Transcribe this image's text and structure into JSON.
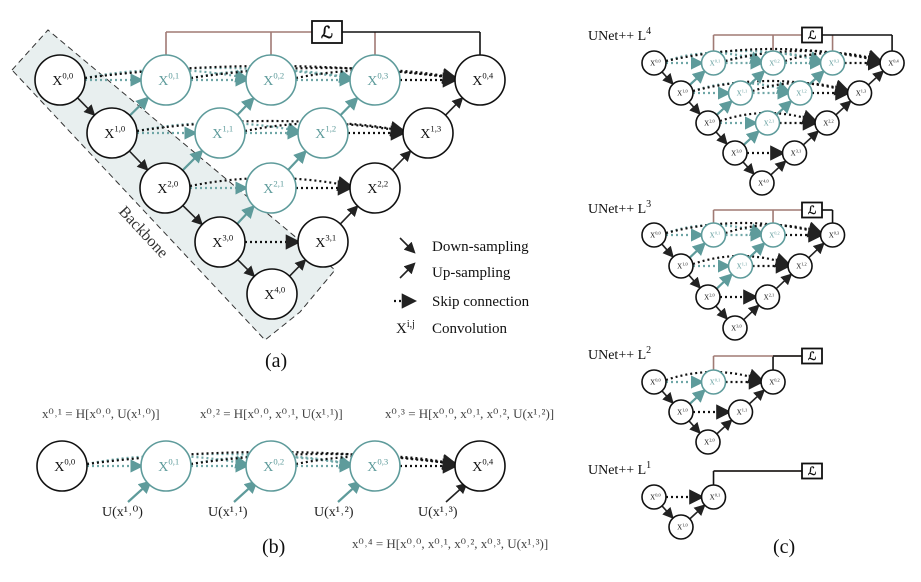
{
  "panel_labels": {
    "a": "(a)",
    "b": "(b)",
    "c": "(c)"
  },
  "backbone_label": "Backbone",
  "loss_symbol": "ℒ",
  "nodes": {
    "x00": {
      "base": "X",
      "sup": "0,0"
    },
    "x01": {
      "base": "X",
      "sup": "0,1"
    },
    "x02": {
      "base": "X",
      "sup": "0,2"
    },
    "x03": {
      "base": "X",
      "sup": "0,3"
    },
    "x04": {
      "base": "X",
      "sup": "0,4"
    },
    "x10": {
      "base": "X",
      "sup": "1,0"
    },
    "x11": {
      "base": "X",
      "sup": "1,1"
    },
    "x12": {
      "base": "X",
      "sup": "1,2"
    },
    "x13": {
      "base": "X",
      "sup": "1,3"
    },
    "x20": {
      "base": "X",
      "sup": "2,0"
    },
    "x21": {
      "base": "X",
      "sup": "2,1"
    },
    "x22": {
      "base": "X",
      "sup": "2,2"
    },
    "x30": {
      "base": "X",
      "sup": "3,0"
    },
    "x31": {
      "base": "X",
      "sup": "3,1"
    },
    "x40": {
      "base": "X",
      "sup": "4,0"
    }
  },
  "legend": {
    "down": "Down-sampling",
    "up": "Up-sampling",
    "skip": "Skip connection",
    "conv_symbol_base": "X",
    "conv_symbol_sup": "i,j",
    "conv": "Convolution"
  },
  "formulas": {
    "f01": "x⁰˒¹ = H[x⁰˒⁰, U(x¹˒⁰)]",
    "f02": "x⁰˒² = H[x⁰˒⁰, x⁰˒¹, U(x¹˒¹)]",
    "f03": "x⁰˒³ = H[x⁰˒⁰, x⁰˒¹, x⁰˒², U(x¹˒²)]",
    "f04": "x⁰˒⁴ = H[x⁰˒⁰, x⁰˒¹, x⁰˒², x⁰˒³, U(x¹˒³)]"
  },
  "upsample_labels": [
    "U(x¹˒⁰)",
    "U(x¹˒¹)",
    "U(x¹˒²)",
    "U(x¹˒³)"
  ],
  "variants": [
    {
      "title": "UNet++ L",
      "level": "4"
    },
    {
      "title": "UNet++ L",
      "level": "3"
    },
    {
      "title": "UNet++ L",
      "level": "2"
    },
    {
      "title": "UNet++ L",
      "level": "1"
    }
  ],
  "colors": {
    "teal": "#5e9b9b",
    "loss_link": "#a07a74",
    "backbone_fill": "#e8efef"
  }
}
